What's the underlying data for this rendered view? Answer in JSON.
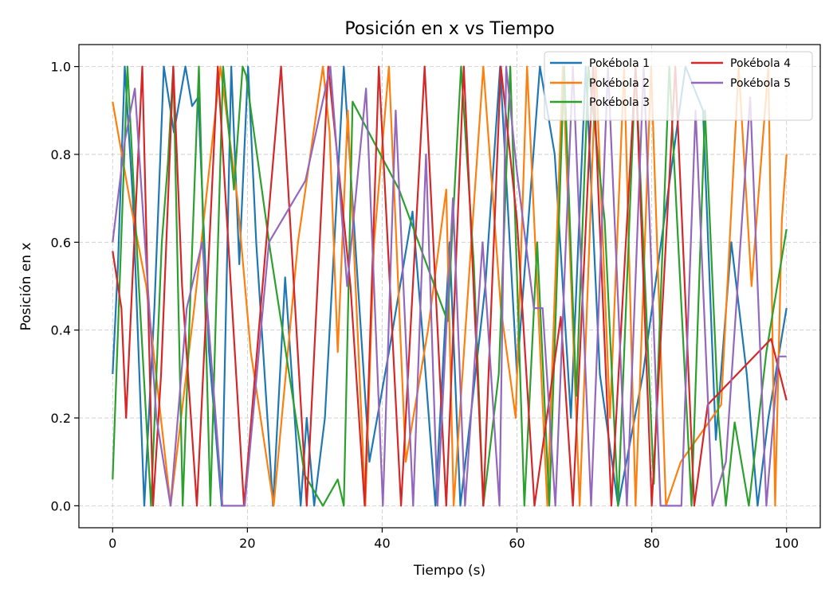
{
  "chart_data": {
    "type": "line",
    "title": "Posición en x vs Tiempo",
    "xlabel": "Tiempo (s)",
    "ylabel": "Posición en x",
    "xlim": [
      -5,
      105
    ],
    "ylim": [
      -0.05,
      1.05
    ],
    "xticks": [
      0,
      20,
      40,
      60,
      80,
      100
    ],
    "xtick_labels": [
      "0",
      "20",
      "40",
      "60",
      "80",
      "100"
    ],
    "yticks": [
      0.0,
      0.2,
      0.4,
      0.6,
      0.8,
      1.0
    ],
    "ytick_labels": [
      "0.0",
      "0.2",
      "0.4",
      "0.6",
      "0.8",
      "1.0"
    ],
    "grid": true,
    "legend_position": "top-right",
    "legend_columns": 2,
    "series": [
      {
        "name": "Pokébola 1",
        "color": "#1f77b4",
        "x": [
          0,
          0.8,
          1.8,
          3.0,
          4.7,
          6.2,
          7.6,
          9.1,
          10.8,
          11.8,
          12.7,
          14.3,
          16.2,
          17.6,
          18.8,
          20.1,
          21.3,
          23.8,
          25.6,
          27.9,
          28.8,
          29.9,
          31.5,
          34.3,
          38.1,
          41.0,
          44.5,
          46.2,
          47.9,
          50.0,
          51.6,
          53.1,
          55.3,
          57.5,
          60.0,
          63.4,
          65.6,
          68.0,
          70.2,
          72.3,
          75.0,
          78.7,
          85.0,
          87.6,
          89.5,
          91.8,
          94.1,
          95.7,
          97.3,
          100
        ],
        "y": [
          0.3,
          0.55,
          1.0,
          0.7,
          0.0,
          0.45,
          1.0,
          0.85,
          1.0,
          0.91,
          0.93,
          0.35,
          0.0,
          1.0,
          0.55,
          1.0,
          0.6,
          0.0,
          0.52,
          0.0,
          0.2,
          0.0,
          0.2,
          1.0,
          0.1,
          0.35,
          0.67,
          0.35,
          0.0,
          0.6,
          0.0,
          0.2,
          0.5,
          1.0,
          0.3,
          1.0,
          0.8,
          0.2,
          1.0,
          0.3,
          0.0,
          0.3,
          1.0,
          0.9,
          0.15,
          0.6,
          0.3,
          0.0,
          0.2,
          0.45
        ]
      },
      {
        "name": "Pokébola 2",
        "color": "#ff7f0e",
        "x": [
          0,
          2.5,
          5.0,
          8.6,
          12.1,
          16.0,
          18.5,
          20.5,
          23.9,
          27.5,
          31.2,
          32.2,
          33.4,
          34.9,
          37.5,
          38.8,
          41.0,
          43.5,
          46.8,
          49.5,
          50.6,
          53.0,
          55.0,
          57.6,
          59.8,
          61.5,
          64.5,
          66.8,
          69.3,
          71.7,
          73.8,
          75.9,
          77.6,
          79.9,
          82.1,
          84.3,
          90.3,
          92.9,
          94.8,
          97.3,
          98.3,
          99.3,
          100
        ],
        "y": [
          0.92,
          0.7,
          0.5,
          0.0,
          0.45,
          1.0,
          0.7,
          0.35,
          0.0,
          0.6,
          1.0,
          0.85,
          0.35,
          0.9,
          0.0,
          0.6,
          1.0,
          0.1,
          0.4,
          0.72,
          0.0,
          0.55,
          1.0,
          0.45,
          0.2,
          1.0,
          0.0,
          1.0,
          0.0,
          1.0,
          0.2,
          1.0,
          0.0,
          1.0,
          0.0,
          0.1,
          0.23,
          1.0,
          0.5,
          1.0,
          0.0,
          0.65,
          0.8
        ]
      },
      {
        "name": "Pokébola 3",
        "color": "#2ca02c",
        "x": [
          0,
          2.2,
          3.9,
          5.7,
          7.3,
          8.2,
          9.0,
          10.4,
          12.8,
          14.5,
          16.4,
          18.0,
          19.3,
          19.8,
          23.4,
          28.5,
          31.2,
          33.4,
          34.3,
          35.6,
          42.5,
          49.7,
          51.7,
          53.6,
          55.0,
          57.3,
          59.0,
          61.1,
          63.0,
          64.8,
          67.0,
          68.8,
          70.6,
          73.0,
          75.0,
          77.6,
          80.3,
          82.6,
          85.9,
          87.9,
          89.9,
          91.0,
          92.3,
          94.4,
          97.0,
          100
        ],
        "y": [
          0.06,
          1.0,
          0.5,
          0.0,
          0.6,
          0.78,
          1.0,
          0.0,
          1.0,
          0.0,
          1.0,
          0.72,
          1.0,
          0.98,
          0.58,
          0.07,
          0.0,
          0.06,
          0.0,
          0.92,
          0.72,
          0.42,
          1.0,
          0.55,
          0.0,
          0.3,
          1.0,
          0.0,
          0.6,
          0.0,
          1.0,
          0.25,
          1.0,
          0.65,
          0.0,
          1.0,
          0.05,
          1.0,
          0.0,
          0.9,
          0.2,
          0.0,
          0.19,
          0.0,
          0.35,
          0.63
        ]
      },
      {
        "name": "Pokébola 4",
        "color": "#d62728",
        "x": [
          0,
          1.3,
          2.0,
          4.4,
          6.0,
          7.2,
          9.0,
          10.3,
          12.5,
          15.6,
          19.5,
          22.8,
          25.0,
          28.8,
          32.0,
          35.3,
          37.4,
          39.5,
          42.8,
          46.3,
          49.5,
          52.1,
          55.0,
          57.6,
          60.0,
          62.6,
          66.5,
          68.3,
          71.3,
          74.0,
          77.6,
          80.0,
          83.5,
          86.3,
          88.3,
          97.7,
          100
        ],
        "y": [
          0.58,
          0.45,
          0.2,
          1.0,
          0.0,
          0.3,
          1.0,
          0.5,
          0.0,
          1.0,
          0.0,
          0.6,
          1.0,
          0.0,
          1.0,
          0.5,
          0.0,
          1.0,
          0.0,
          1.0,
          0.0,
          1.0,
          0.0,
          1.0,
          0.65,
          0.0,
          0.43,
          0.0,
          1.0,
          0.0,
          1.0,
          0.0,
          1.0,
          0.0,
          0.23,
          0.38,
          0.24
        ]
      },
      {
        "name": "Pokébola 5",
        "color": "#9467bd",
        "x": [
          0,
          1.8,
          3.3,
          6.5,
          8.6,
          11.0,
          13.3,
          16.3,
          19.6,
          23.2,
          28.6,
          32.3,
          34.8,
          37.6,
          40.1,
          42.0,
          44.6,
          46.5,
          48.2,
          50.5,
          52.3,
          54.9,
          57.4,
          58.4,
          60.0,
          62.5,
          63.8,
          65.7,
          68.3,
          71.0,
          73.5,
          76.3,
          78.8,
          81.3,
          84.4,
          86.5,
          89.0,
          91.0,
          94.6,
          97.0,
          98.8,
          100
        ],
        "y": [
          0.6,
          0.83,
          0.95,
          0.2,
          0.0,
          0.45,
          0.6,
          0.0,
          0.0,
          0.6,
          0.74,
          1.0,
          0.5,
          0.95,
          0.0,
          0.9,
          0.0,
          0.8,
          0.0,
          0.7,
          0.0,
          0.6,
          0.0,
          1.0,
          0.76,
          0.45,
          0.45,
          0.0,
          1.0,
          0.0,
          1.0,
          0.0,
          1.0,
          0.0,
          0.0,
          0.9,
          0.0,
          0.1,
          0.93,
          0.0,
          0.34,
          0.34
        ]
      }
    ]
  }
}
